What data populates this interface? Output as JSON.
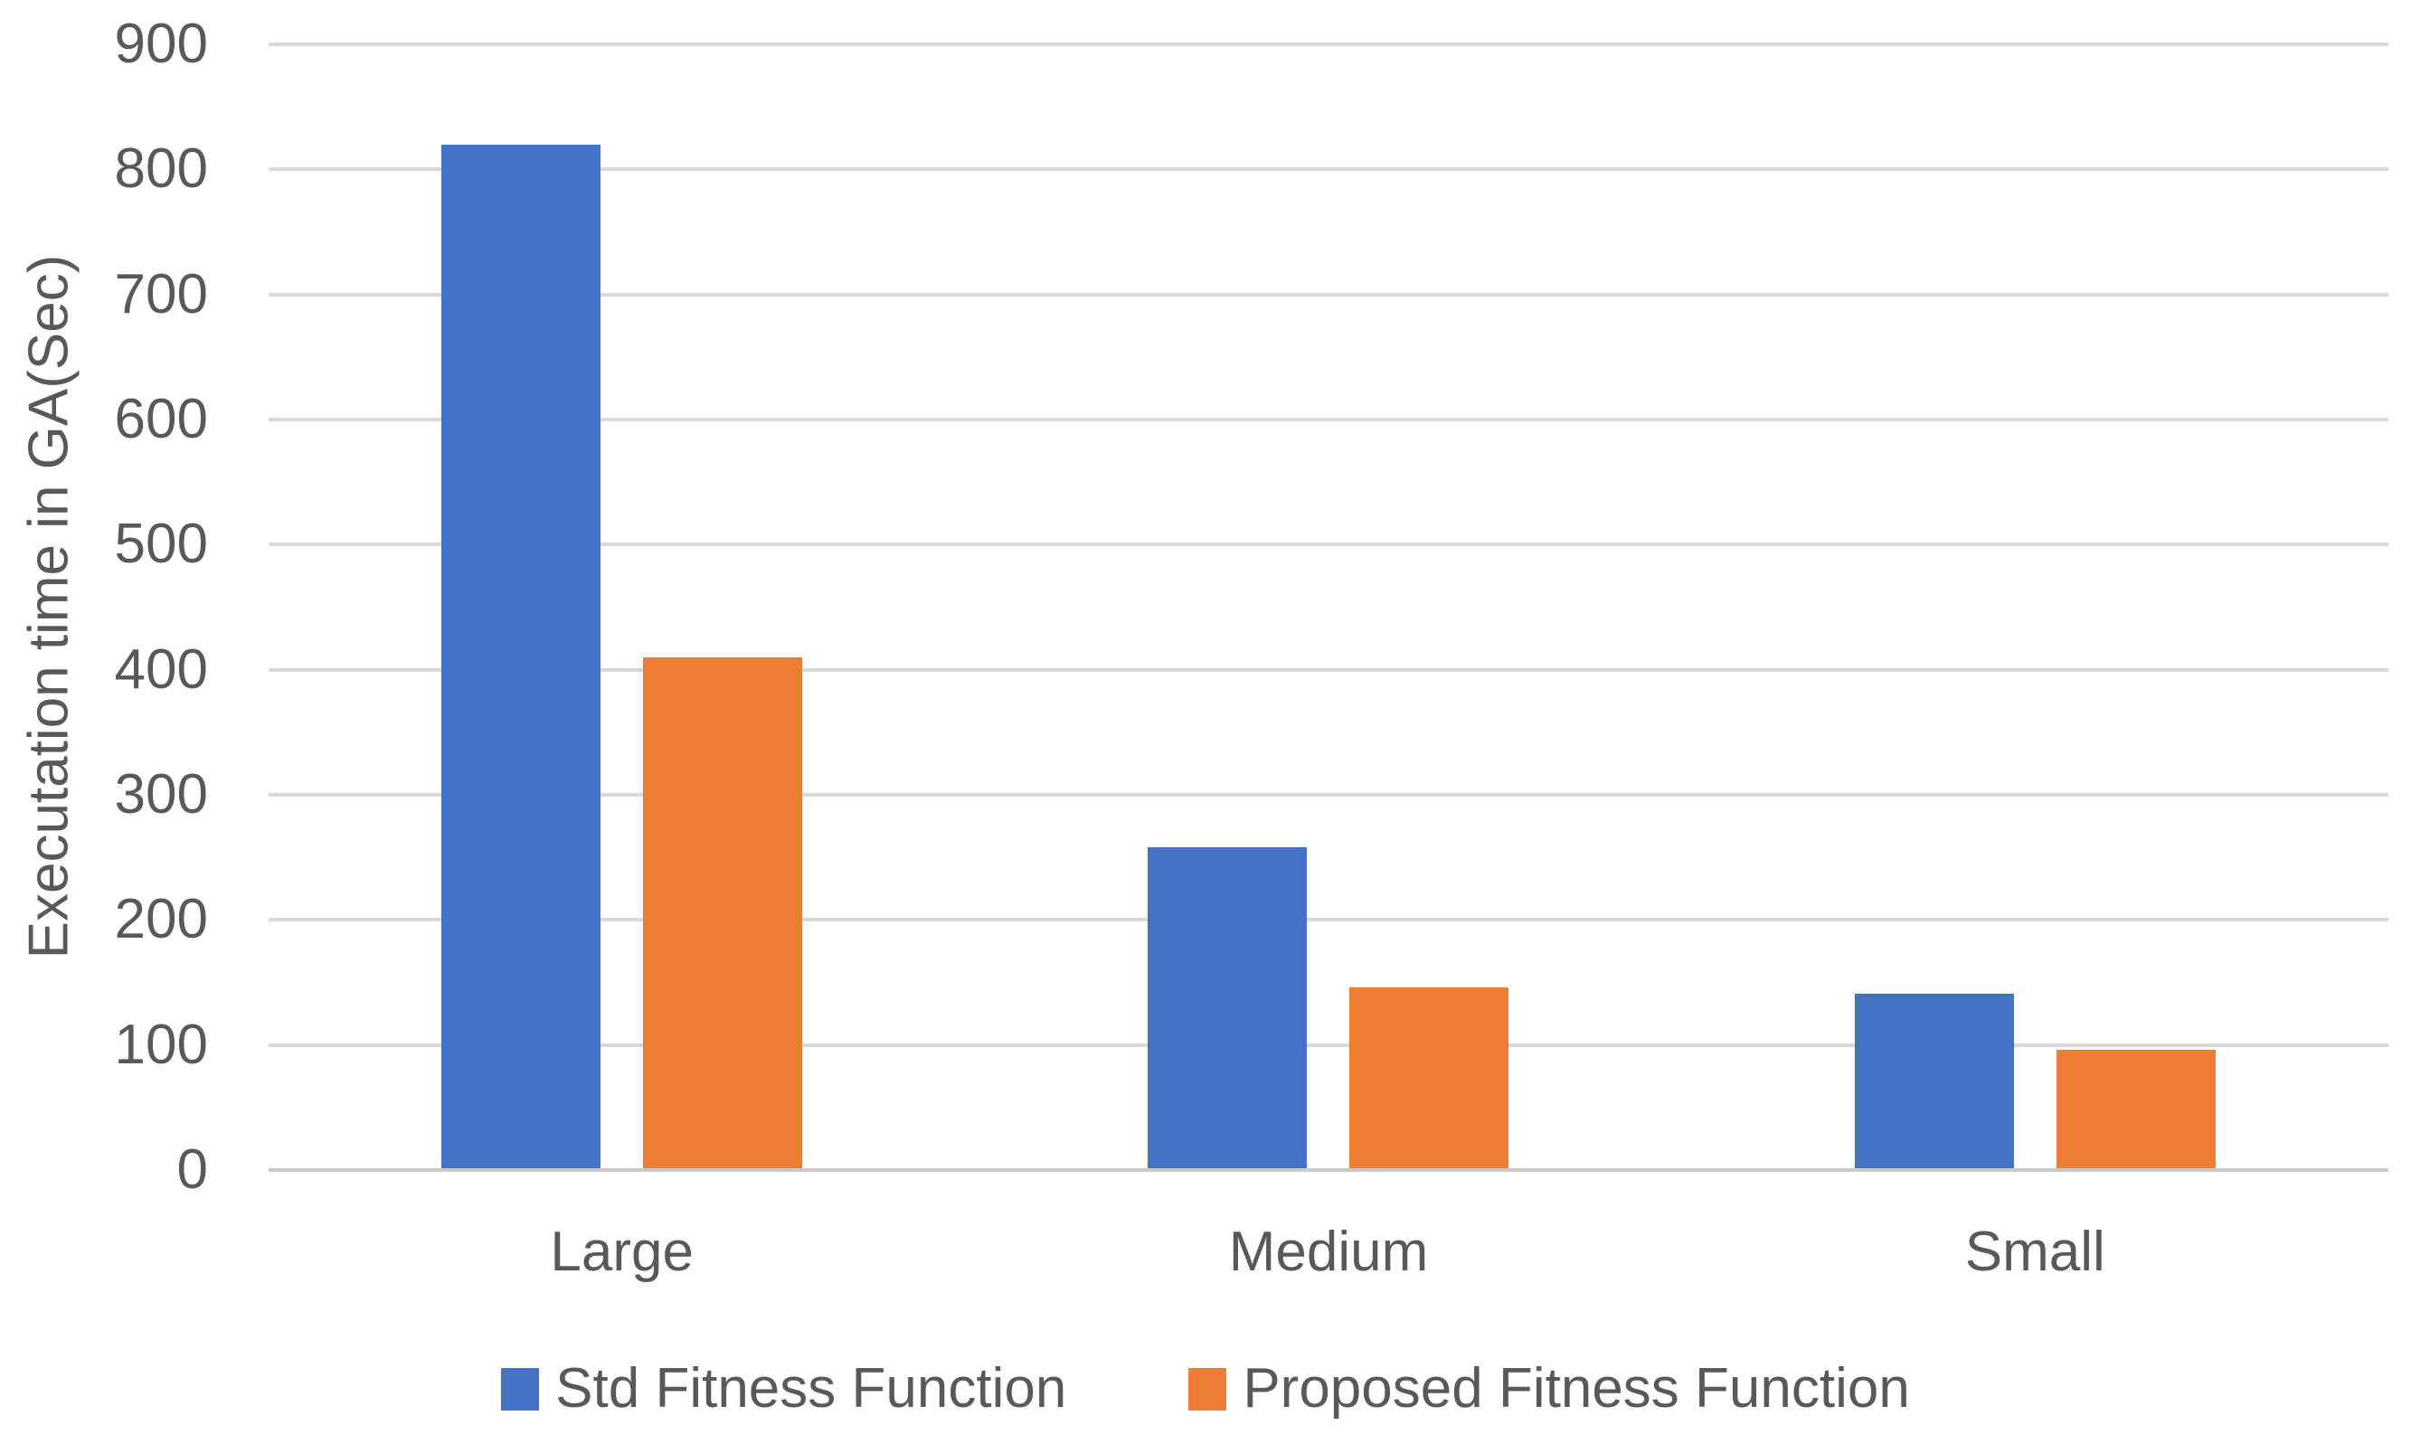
{
  "chart_data": {
    "type": "bar",
    "title": "",
    "y_axis_title": "Executation time in GA(Sec)",
    "categories": [
      "Large",
      "Medium",
      "Small"
    ],
    "series": [
      {
        "name": "Std Fitness Function",
        "color": "#4472C4",
        "values": [
          820,
          258,
          141
        ]
      },
      {
        "name": "Proposed Fitness Function",
        "color": "#ED7D31",
        "values": [
          410,
          146,
          96
        ]
      }
    ],
    "ylim": [
      0,
      900
    ],
    "y_tick_step": 100,
    "y_ticks": [
      "0",
      "100",
      "200",
      "300",
      "400",
      "500",
      "600",
      "700",
      "800",
      "900"
    ],
    "grid": true,
    "legend_position": "bottom",
    "colors": {
      "gridline": "#D9D9D9",
      "axis_line": "#C9C9C9",
      "text": "#595959",
      "background": "#FFFFFF"
    }
  }
}
